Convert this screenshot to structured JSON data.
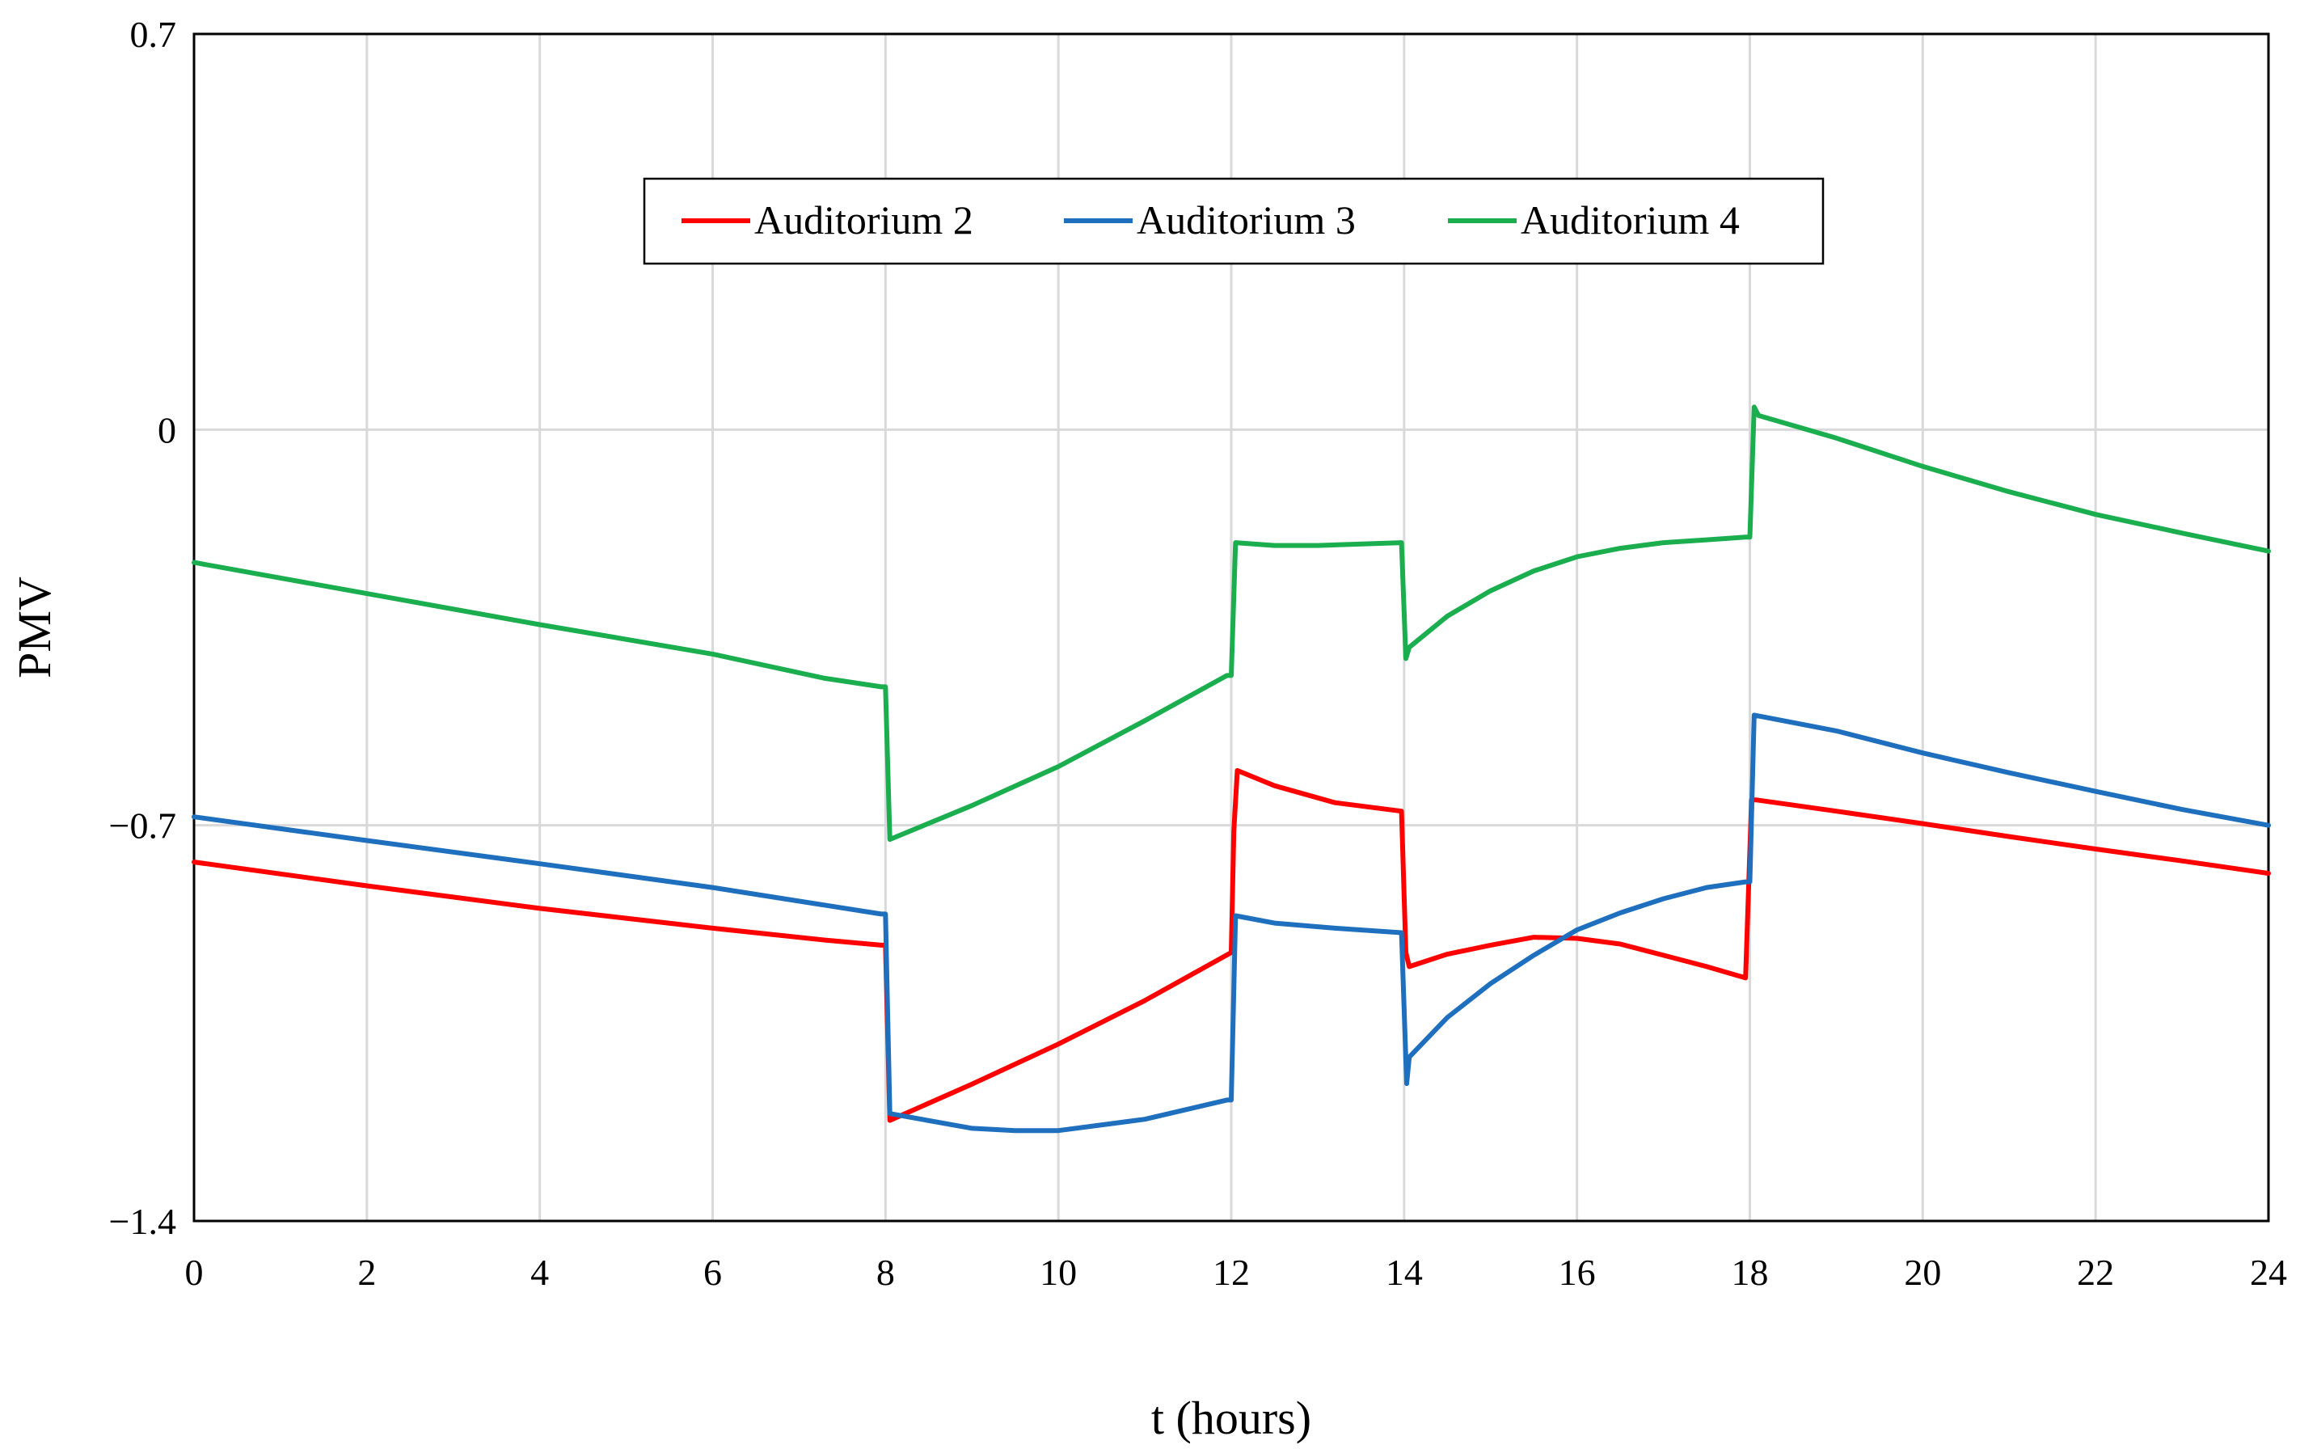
{
  "chart_data": {
    "type": "line",
    "title": "",
    "xlabel": "t (hours)",
    "ylabel": "PMV",
    "xlim": [
      0,
      24
    ],
    "ylim": [
      -1.4,
      0.7
    ],
    "xticks": [
      0,
      2,
      4,
      6,
      8,
      10,
      12,
      14,
      16,
      18,
      20,
      22,
      24
    ],
    "yticks": [
      -1.4,
      -0.7,
      0,
      0.7
    ],
    "ytick_labels": [
      "−1.4",
      "−0.7",
      "0",
      "0.7"
    ],
    "grid": true,
    "legend_position": "top-center",
    "series": [
      {
        "name": "Auditorium 2",
        "color": "#ff0000",
        "x": [
          0,
          2,
          4,
          6,
          7.3,
          7.95,
          8.0,
          8.05,
          9,
          10,
          11,
          12,
          12.03,
          12.07,
          12.5,
          13.2,
          13.97,
          14.02,
          14.06,
          14.5,
          15,
          15.5,
          16,
          16.5,
          17,
          17.5,
          17.95,
          18.02,
          18.07,
          19,
          20,
          21,
          22,
          23,
          24
        ],
        "y": [
          -0.765,
          -0.807,
          -0.847,
          -0.882,
          -0.903,
          -0.912,
          -0.912,
          -1.222,
          -1.158,
          -1.087,
          -1.01,
          -0.925,
          -0.71,
          -0.603,
          -0.63,
          -0.66,
          -0.675,
          -0.925,
          -0.95,
          -0.928,
          -0.912,
          -0.898,
          -0.9,
          -0.91,
          -0.93,
          -0.95,
          -0.97,
          -0.655,
          -0.655,
          -0.675,
          -0.697,
          -0.72,
          -0.742,
          -0.763,
          -0.785
        ]
      },
      {
        "name": "Auditorium 3",
        "color": "#1f6fbf",
        "x": [
          0,
          2,
          4,
          6,
          7.95,
          8.0,
          8.05,
          9,
          9.5,
          10,
          11,
          11.95,
          12.0,
          12.05,
          12.5,
          13.2,
          13.97,
          14.03,
          14.06,
          14.5,
          15,
          15.5,
          16,
          16.5,
          17,
          17.5,
          17.95,
          18.0,
          18.05,
          19,
          20,
          21,
          22,
          23,
          24
        ],
        "y": [
          -0.685,
          -0.727,
          -0.768,
          -0.81,
          -0.857,
          -0.857,
          -1.21,
          -1.236,
          -1.24,
          -1.24,
          -1.22,
          -1.186,
          -1.186,
          -0.86,
          -0.873,
          -0.882,
          -0.89,
          -1.157,
          -1.11,
          -1.04,
          -0.98,
          -0.93,
          -0.885,
          -0.855,
          -0.83,
          -0.81,
          -0.8,
          -0.8,
          -0.505,
          -0.533,
          -0.572,
          -0.607,
          -0.64,
          -0.672,
          -0.7
        ]
      },
      {
        "name": "Auditorium 4",
        "color": "#1aae4f",
        "x": [
          0,
          2,
          4,
          6,
          7.3,
          7.95,
          8.0,
          8.05,
          9,
          10,
          11,
          11.95,
          12.0,
          12.05,
          12.5,
          13,
          13.97,
          14.02,
          14.06,
          14.5,
          15,
          15.5,
          16,
          16.5,
          17,
          17.5,
          17.95,
          18.0,
          18.05,
          18.1,
          19,
          20,
          21,
          22,
          23,
          24
        ],
        "y": [
          -0.235,
          -0.29,
          -0.345,
          -0.397,
          -0.44,
          -0.455,
          -0.455,
          -0.725,
          -0.665,
          -0.596,
          -0.515,
          -0.435,
          -0.435,
          -0.2,
          -0.205,
          -0.205,
          -0.2,
          -0.405,
          -0.385,
          -0.33,
          -0.285,
          -0.25,
          -0.225,
          -0.21,
          -0.2,
          -0.195,
          -0.19,
          -0.19,
          0.04,
          0.025,
          -0.015,
          -0.065,
          -0.11,
          -0.15,
          -0.183,
          -0.215
        ]
      }
    ]
  }
}
